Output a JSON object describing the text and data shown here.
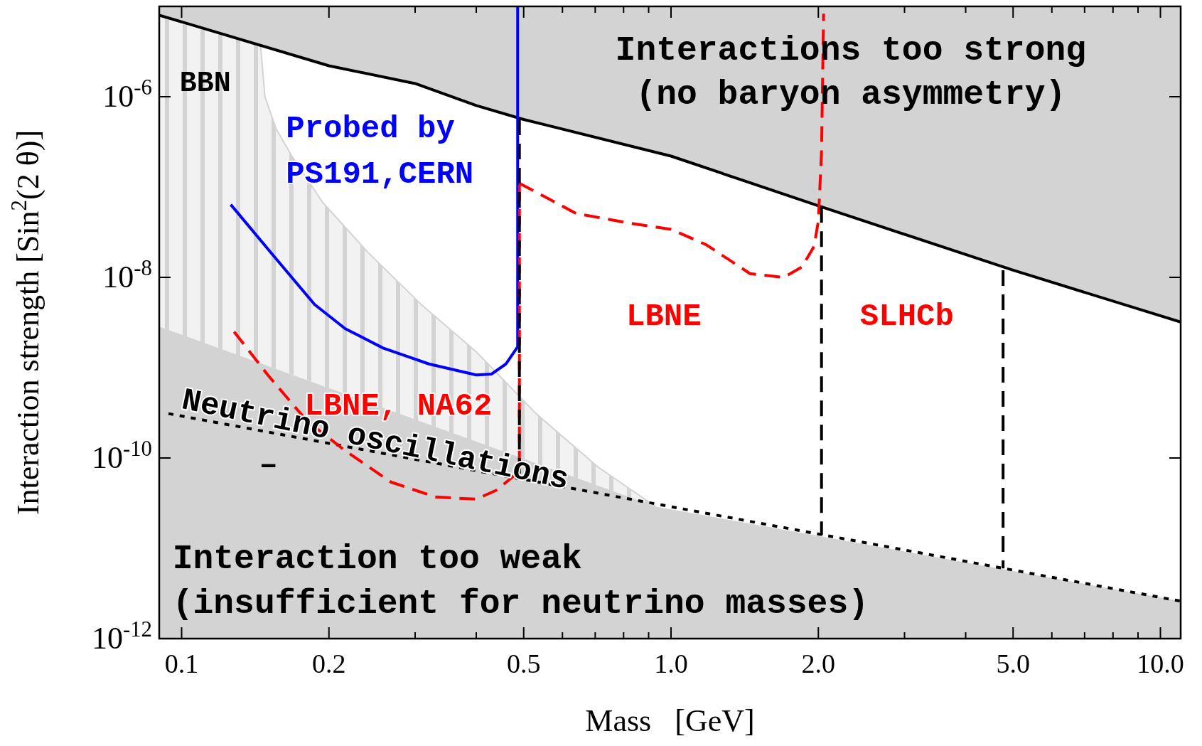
{
  "chart_data": {
    "type": "line",
    "xlabel": "Mass   [GeV]",
    "ylabel": "Interaction strength [Sin$^{2}$(2 θ)]",
    "log": "xy",
    "grid": false,
    "xlim": [
      0.09,
      11
    ],
    "ylim": [
      1e-12,
      1e-05
    ],
    "xticks": [
      {
        "value": 0.1,
        "label": "0.1"
      },
      {
        "value": 0.2,
        "label": "0.2"
      },
      {
        "value": 0.3,
        "label": null
      },
      {
        "value": 0.4,
        "label": null
      },
      {
        "value": 0.5,
        "label": "0.5"
      },
      {
        "value": 0.6,
        "label": null
      },
      {
        "value": 0.7,
        "label": null
      },
      {
        "value": 0.8,
        "label": null
      },
      {
        "value": 0.9,
        "label": null
      },
      {
        "value": 1,
        "label": "1.0"
      },
      {
        "value": 2,
        "label": "2.0"
      },
      {
        "value": 3,
        "label": null
      },
      {
        "value": 4,
        "label": null
      },
      {
        "value": 5,
        "label": "5.0"
      },
      {
        "value": 6,
        "label": null
      },
      {
        "value": 7,
        "label": null
      },
      {
        "value": 8,
        "label": null
      },
      {
        "value": 9,
        "label": null
      },
      {
        "value": 10,
        "label": "10.0"
      }
    ],
    "yticks": [
      {
        "value": 1e-12,
        "label": "10$^{-12}$"
      },
      {
        "value": 1e-10,
        "label": "10$^{-10}$"
      },
      {
        "value": 1e-08,
        "label": "10$^{-8}$"
      },
      {
        "value": 1e-06,
        "label": "10$^{-6}$"
      }
    ],
    "series": [
      {
        "color": "#000000",
        "line_style": "solid",
        "x": [
          0.09,
          0.2,
          0.3,
          0.4,
          0.5,
          1.0,
          2.0,
          5.0,
          11
        ],
        "values": [
          8e-06,
          2.2e-06,
          1.4e-06,
          8e-07,
          5.6e-07,
          2.2e-07,
          6.2e-08,
          1.2e-08,
          3.2e-09
        ],
        "lower": [
          8e-06,
          2.2e-06,
          1.4e-06,
          8e-07,
          5.6e-07,
          2.2e-07,
          6.2e-08,
          1.2e-08,
          3.2e-09
        ],
        "upper": [
          1e-05,
          1e-05,
          1e-05,
          1e-05,
          1e-05,
          1e-05,
          1e-05,
          1e-05,
          1e-05
        ]
      },
      {
        "type": "area",
        "color": "#d3d3d3",
        "x": [
          0.09,
          0.93,
          11
        ],
        "values": [
          2.85e-09,
          2.9e-11,
          2.6e-12
        ]
      },
      {
        "color": "#d3d3d3",
        "line_style": "solid",
        "x": [
          0.09,
          0.145,
          0.148,
          0.156,
          0.168,
          0.194,
          0.24,
          0.31,
          0.4,
          0.53,
          0.71,
          0.93
        ],
        "values": [
          8e-06,
          3.6e-06,
          1e-06,
          4.4e-07,
          2.2e-07,
          6.8e-08,
          1.9e-08,
          4.9e-09,
          1.5e-09,
          3.1e-10,
          7.9e-11,
          2.9e-11
        ],
        "lower": [
          2.85e-09,
          1.1e-09,
          1.07e-09,
          9.7e-10,
          8.4e-10,
          6.3e-10,
          4.1e-10,
          2.5e-10,
          1.5e-10,
          8.7e-11,
          4.9e-11,
          2.9e-11
        ],
        "upper": [
          8e-06,
          3.6e-06,
          1e-06,
          4.4e-07,
          2.2e-07,
          6.8e-08,
          1.9e-08,
          4.9e-09,
          1.5e-09,
          3.1e-10,
          7.9e-11,
          2.9e-11
        ]
      },
      {
        "name": "Neutrino oscillations",
        "color": "#000000",
        "line_style": "dotted",
        "x": [
          0.094,
          11
        ],
        "values": [
          3.1e-10,
          2.6e-12
        ]
      },
      {
        "name": "Probed by PS191,CERN",
        "color": "#0000ff",
        "line_style": "solid",
        "x": [
          0.126,
          0.156,
          0.187,
          0.216,
          0.258,
          0.32,
          0.4,
          0.43,
          0.46,
          0.486,
          0.486
        ],
        "values": [
          6.4e-08,
          1.6e-08,
          5e-09,
          2.7e-09,
          1.65e-09,
          1.1e-09,
          8.3e-10,
          8.5e-10,
          1.1e-09,
          1.7e-09,
          1e-05
        ]
      },
      {
        "name": "LBNE, NA62",
        "color": "#ff0000",
        "line_style": "dashed",
        "x": [
          0.128,
          0.15,
          0.18,
          0.216,
          0.268,
          0.33,
          0.4,
          0.44,
          0.48,
          0.49,
          0.49
        ],
        "values": [
          2.5e-09,
          8.3e-10,
          2.6e-10,
          1.2e-10,
          5.4e-11,
          3.7e-11,
          3.5e-11,
          4.4e-11,
          6.5e-11,
          8.5e-11,
          1.1e-07
        ]
      },
      {
        "name": "LBNE",
        "color": "#ff0000",
        "line_style": "dashed",
        "x": [
          0.49,
          0.64,
          0.82,
          1.0,
          1.18,
          1.45,
          1.7,
          1.85,
          1.96,
          2.0,
          2.03,
          2.05
        ],
        "values": [
          1.1e-07,
          5.1e-08,
          4e-08,
          3.4e-08,
          2.3e-08,
          1.1e-08,
          1e-08,
          1.3e-08,
          2.2e-08,
          4.2e-08,
          2.4e-07,
          8.3e-06
        ]
      },
      {
        "color": "#000000",
        "line_style": "dashed",
        "x": [
          0.49,
          0.49
        ],
        "values": [
          5.6e-07,
          6e-11
        ]
      },
      {
        "color": "#000000",
        "line_style": "dashed",
        "x": [
          2.03,
          2.03
        ],
        "values": [
          6e-08,
          1.4e-11
        ]
      },
      {
        "color": "#000000",
        "line_style": "dashed",
        "x": [
          4.77,
          4.77
        ],
        "values": [
          1.2e-08,
          6e-12
        ]
      }
    ],
    "annotations": [
      "Interactions too strong (no baryon asymmetry)",
      "Interaction too weak (insufficient for neutrino masses)",
      "SLHCb",
      "–",
      "BBN"
    ]
  }
}
